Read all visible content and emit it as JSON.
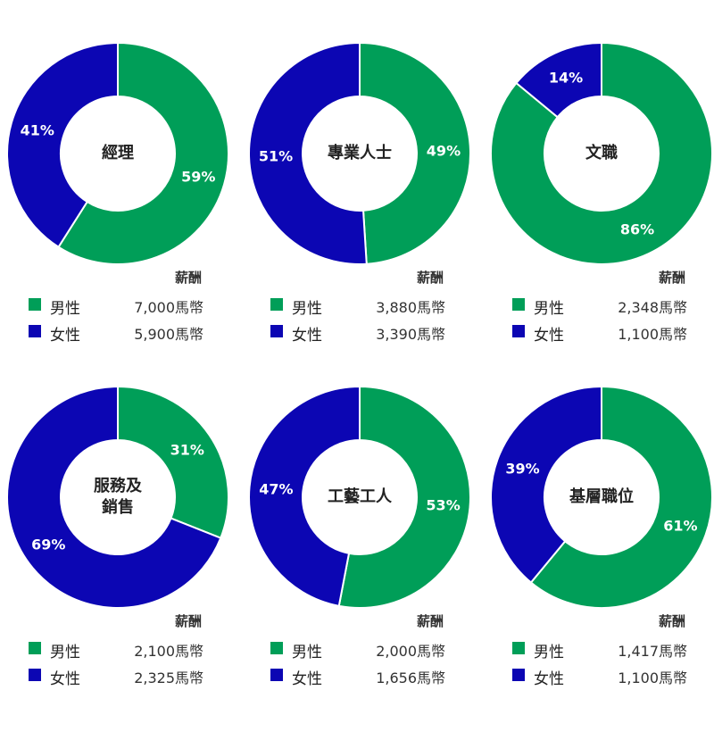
{
  "colors": {
    "male": "#009E58",
    "female": "#0C06B3"
  },
  "legend": {
    "salary_header": "薪酬",
    "male_label": "男性",
    "female_label": "女性"
  },
  "chart_data": [
    {
      "type": "pie",
      "center_label": "經理",
      "categories": [
        "男性",
        "女性"
      ],
      "values": [
        59,
        41
      ],
      "percent_labels": [
        "59%",
        "41%"
      ],
      "salary": {
        "male": "7,000馬幣",
        "female": "5,900馬幣"
      }
    },
    {
      "type": "pie",
      "center_label": "專業人士",
      "categories": [
        "男性",
        "女性"
      ],
      "values": [
        49,
        51
      ],
      "percent_labels": [
        "49%",
        "51%"
      ],
      "salary": {
        "male": "3,880馬幣",
        "female": "3,390馬幣"
      }
    },
    {
      "type": "pie",
      "center_label": "文職",
      "categories": [
        "男性",
        "女性"
      ],
      "values": [
        86,
        14
      ],
      "percent_labels": [
        "86%",
        "14%"
      ],
      "salary": {
        "male": "2,348馬幣",
        "female": "1,100馬幣"
      }
    },
    {
      "type": "pie",
      "center_label": "服務及\n銷售",
      "categories": [
        "男性",
        "女性"
      ],
      "values": [
        31,
        69
      ],
      "percent_labels": [
        "31%",
        "69%"
      ],
      "salary": {
        "male": "2,100馬幣",
        "female": "2,325馬幣"
      }
    },
    {
      "type": "pie",
      "center_label": "工藝工人",
      "categories": [
        "男性",
        "女性"
      ],
      "values": [
        53,
        47
      ],
      "percent_labels": [
        "53%",
        "47%"
      ],
      "salary": {
        "male": "2,000馬幣",
        "female": "1,656馬幣"
      }
    },
    {
      "type": "pie",
      "center_label": "基層職位",
      "categories": [
        "男性",
        "女性"
      ],
      "values": [
        61,
        39
      ],
      "percent_labels": [
        "61%",
        "39%"
      ],
      "salary": {
        "male": "1,417馬幣",
        "female": "1,100馬幣"
      }
    }
  ]
}
